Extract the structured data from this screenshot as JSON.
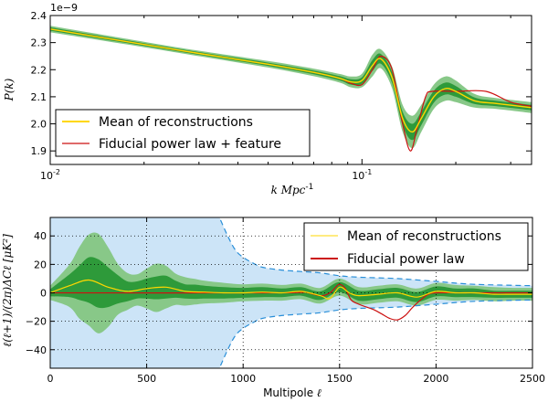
{
  "chart_data": [
    {
      "type": "line",
      "id": "top",
      "title": "",
      "xlabel": "k Mpc⁻¹",
      "xlabel_main": "k Mpc",
      "xlabel_sup": "-1",
      "ylabel": "P(k)",
      "xscale": "log",
      "xlim": [
        0.01,
        0.35
      ],
      "ylim": [
        1.85,
        2.4
      ],
      "y_offset_label": "1e−9",
      "grid": false,
      "x_ticks": [
        {
          "value": 0.01,
          "base": "10",
          "exp": "-2"
        },
        {
          "value": 0.1,
          "base": "10",
          "exp": "-1"
        }
      ],
      "y_ticks": [
        {
          "value": 1.9,
          "label": "1.9"
        },
        {
          "value": 2.0,
          "label": "2.0"
        },
        {
          "value": 2.1,
          "label": "2.1"
        },
        {
          "value": 2.2,
          "label": "2.2"
        },
        {
          "value": 2.3,
          "label": "2.3"
        },
        {
          "value": 2.4,
          "label": "2.4"
        }
      ],
      "legend": {
        "position": "lower-left",
        "entries": [
          {
            "label": "Mean of reconstructions",
            "color": "#ffd700"
          },
          {
            "label": "Fiducial power law + feature",
            "color": "#cc1111"
          }
        ]
      },
      "series": [
        {
          "name": "Mean of reconstructions",
          "color": "#ffd700",
          "x": [
            0.01,
            0.02,
            0.03,
            0.05,
            0.07,
            0.085,
            0.092,
            0.1,
            0.108,
            0.115,
            0.125,
            0.135,
            0.145,
            0.155,
            0.17,
            0.185,
            0.2,
            0.23,
            0.27,
            0.35
          ],
          "y": [
            2.35,
            2.293,
            2.26,
            2.22,
            2.19,
            2.168,
            2.155,
            2.16,
            2.215,
            2.24,
            2.17,
            2.02,
            1.97,
            2.02,
            2.1,
            2.13,
            2.12,
            2.085,
            2.075,
            2.06
          ]
        },
        {
          "name": "Fiducial power law + feature",
          "color": "#cc1111",
          "x": [
            0.01,
            0.02,
            0.03,
            0.05,
            0.07,
            0.085,
            0.092,
            0.1,
            0.108,
            0.115,
            0.125,
            0.135,
            0.143,
            0.15,
            0.16,
            0.168,
            0.2,
            0.25,
            0.3,
            0.35
          ],
          "y": [
            2.35,
            2.293,
            2.26,
            2.22,
            2.19,
            2.168,
            2.15,
            2.145,
            2.2,
            2.25,
            2.2,
            2.0,
            1.9,
            1.98,
            2.1,
            2.12,
            2.12,
            2.12,
            2.08,
            2.065
          ]
        }
      ],
      "bands": [
        {
          "name": "outer confidence band",
          "color": "#88c888",
          "halfwidth": [
            0.012,
            0.01,
            0.01,
            0.012,
            0.014,
            0.016,
            0.02,
            0.025,
            0.04,
            0.035,
            0.04,
            0.05,
            0.06,
            0.05,
            0.045,
            0.045,
            0.04,
            0.025,
            0.02,
            0.02
          ]
        },
        {
          "name": "inner confidence band",
          "color": "#2e9a3a",
          "halfwidth": [
            0.006,
            0.005,
            0.005,
            0.006,
            0.007,
            0.008,
            0.01,
            0.012,
            0.02,
            0.018,
            0.02,
            0.025,
            0.03,
            0.025,
            0.022,
            0.022,
            0.02,
            0.012,
            0.01,
            0.01
          ]
        }
      ]
    },
    {
      "type": "line",
      "id": "bottom",
      "title": "",
      "xlabel": "Multipole ℓ",
      "xlabel_main": "Multipole ",
      "xlabel_ell": "ℓ",
      "ylabel": "ℓ(ℓ+1)/(2π)ΔCℓ [μK²]",
      "xlim": [
        0,
        2500
      ],
      "ylim": [
        -53,
        53
      ],
      "grid": true,
      "x_ticks": [
        {
          "value": 0,
          "label": "0"
        },
        {
          "value": 500,
          "label": "500"
        },
        {
          "value": 1000,
          "label": "1000"
        },
        {
          "value": 1500,
          "label": "1500"
        },
        {
          "value": 2000,
          "label": "2000"
        },
        {
          "value": 2500,
          "label": "2500"
        }
      ],
      "y_ticks": [
        {
          "value": -40,
          "label": "−40"
        },
        {
          "value": -20,
          "label": "−20"
        },
        {
          "value": 0,
          "label": "0"
        },
        {
          "value": 20,
          "label": "20"
        },
        {
          "value": 40,
          "label": "40"
        }
      ],
      "legend": {
        "position": "top-right",
        "entries": [
          {
            "label": "Mean of reconstructions",
            "color": "#ffd700"
          },
          {
            "label": "Fiducial power law",
            "color": "#cc1111"
          }
        ]
      },
      "cosmic_variance": {
        "color": "#cce4f7",
        "edge_color": "#2a8fd8",
        "x": [
          0,
          850,
          880,
          920,
          960,
          1000,
          1050,
          1100,
          1200,
          1300,
          1400,
          1500,
          1600,
          1800,
          2000,
          2200,
          2500
        ],
        "y": [
          60,
          60,
          52,
          40,
          30,
          25,
          21,
          18,
          16,
          15,
          14,
          12,
          11,
          10,
          8,
          6,
          5
        ]
      },
      "bands": [
        {
          "name": "outer confidence band",
          "color": "#88c888",
          "x": [
            0,
            100,
            150,
            200,
            250,
            300,
            350,
            400,
            450,
            500,
            550,
            600,
            650,
            700,
            750,
            800,
            900,
            1000,
            1100,
            1200,
            1300,
            1400,
            1500,
            1600,
            1700,
            1800,
            1900,
            2000,
            2100,
            2200,
            2300,
            2400,
            2500
          ],
          "halfwidth": [
            5,
            15,
            25,
            32,
            35,
            28,
            18,
            13,
            11,
            14,
            17,
            15,
            11,
            10,
            9,
            8,
            7,
            6,
            6,
            5.5,
            5.5,
            5.5,
            6,
            6,
            6,
            6,
            6,
            6,
            5.5,
            5,
            5,
            4.5,
            4.5
          ]
        },
        {
          "name": "inner confidence band",
          "color": "#2e9a3a",
          "x": [
            0,
            100,
            150,
            200,
            250,
            300,
            350,
            400,
            450,
            500,
            550,
            600,
            650,
            700,
            750,
            800,
            900,
            1000,
            1100,
            1200,
            1300,
            1400,
            1500,
            1600,
            1700,
            1800,
            1900,
            2000,
            2100,
            2200,
            2300,
            2400,
            2500
          ],
          "halfwidth": [
            2.5,
            8,
            12,
            16,
            17,
            14,
            10,
            7,
            6,
            7,
            8,
            8,
            6,
            5,
            5,
            4.5,
            4,
            3.5,
            3.5,
            3,
            3,
            3,
            3.5,
            3.5,
            3.5,
            3.5,
            3.5,
            3.5,
            3,
            3,
            2.5,
            2.5,
            2.5
          ]
        }
      ],
      "series": [
        {
          "name": "Mean of reconstructions",
          "color": "#ffd700",
          "x": [
            0,
            100,
            200,
            300,
            400,
            500,
            600,
            700,
            800,
            900,
            1000,
            1100,
            1200,
            1300,
            1400,
            1450,
            1500,
            1550,
            1600,
            1700,
            1800,
            1900,
            2000,
            2100,
            2200,
            2300,
            2400,
            2500
          ],
          "y": [
            0,
            5,
            9,
            4,
            1,
            3,
            4,
            1,
            0.5,
            0,
            0,
            0.5,
            0,
            1,
            -2,
            -4,
            4,
            0,
            -2,
            -1,
            0,
            -3,
            1,
            0,
            0,
            -1,
            -1,
            -1
          ]
        },
        {
          "name": "Fiducial power law",
          "color": "#cc1111",
          "x": [
            0,
            1200,
            1300,
            1400,
            1450,
            1480,
            1500,
            1530,
            1560,
            1600,
            1640,
            1680,
            1720,
            1760,
            1800,
            1840,
            1880,
            1920,
            1960,
            2000,
            2100,
            2200,
            2500
          ],
          "y": [
            0,
            0,
            1,
            -2,
            0,
            4,
            6,
            3,
            -5,
            -8,
            -10,
            -12,
            -15,
            -18,
            -19,
            -16,
            -10,
            -5,
            -1,
            0,
            0,
            0,
            0
          ]
        }
      ]
    }
  ]
}
